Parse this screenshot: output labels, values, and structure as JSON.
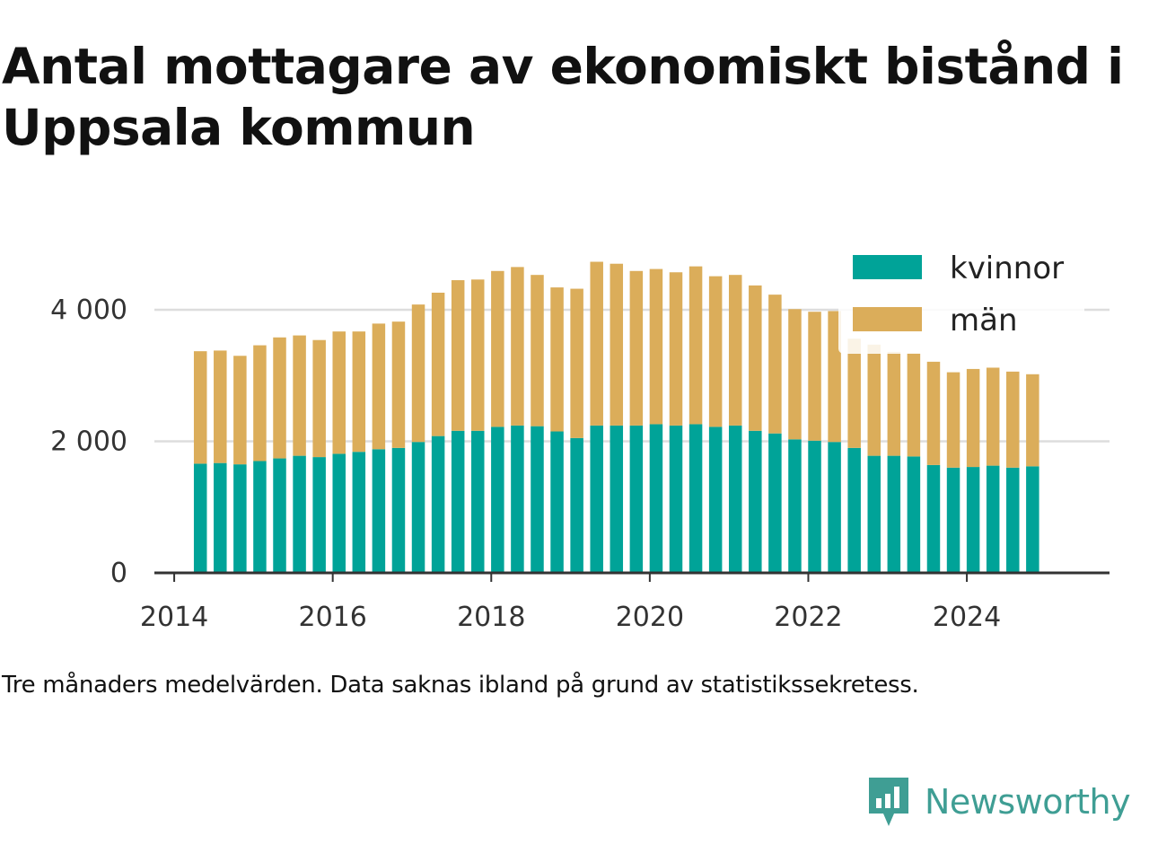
{
  "title": "Antal mottagare av ekonomiskt bistånd i Uppsala kommun",
  "caption": "Tre månaders medelvärden. Data saknas ibland på grund av statistikssekretess.",
  "brand": {
    "name": "Newsworthy",
    "icon": "newsworthy-logo-icon",
    "color": "#3f9e94"
  },
  "colors": {
    "kvinnor": "#00a398",
    "man": "#dbad5a",
    "grid": "#dddddd",
    "axis": "#333333"
  },
  "chart_data": {
    "type": "bar",
    "stacked": true,
    "title": "Antal mottagare av ekonomiskt bistånd i Uppsala kommun",
    "xlabel": "",
    "ylabel": "",
    "ylim": [
      0,
      4800
    ],
    "yticks": [
      0,
      2000,
      4000
    ],
    "ytick_labels": [
      "0",
      "2 000",
      "4 000"
    ],
    "xlim": [
      2013.75,
      2025.8
    ],
    "xticks": [
      2014,
      2016,
      2018,
      2020,
      2022,
      2024
    ],
    "xtick_labels": [
      "2014",
      "2016",
      "2018",
      "2020",
      "2022",
      "2024"
    ],
    "grid": "horizontal",
    "legend_position": "top-right",
    "x": [
      2014.33,
      2014.58,
      2014.83,
      2015.08,
      2015.33,
      2015.58,
      2015.83,
      2016.08,
      2016.33,
      2016.58,
      2016.83,
      2017.08,
      2017.33,
      2017.58,
      2017.83,
      2018.08,
      2018.33,
      2018.58,
      2018.83,
      2019.08,
      2019.33,
      2019.58,
      2019.83,
      2020.08,
      2020.33,
      2020.58,
      2020.83,
      2021.08,
      2021.33,
      2021.58,
      2021.83,
      2022.08,
      2022.33,
      2022.58,
      2022.83,
      2023.08,
      2023.33,
      2023.58,
      2023.83,
      2024.08,
      2024.33,
      2024.58,
      2024.83
    ],
    "series": [
      {
        "name": "kvinnor",
        "color": "#00a398",
        "values": [
          1660,
          1670,
          1650,
          1700,
          1740,
          1780,
          1760,
          1810,
          1840,
          1880,
          1900,
          1990,
          2080,
          2160,
          2160,
          2220,
          2240,
          2230,
          2150,
          2050,
          2240,
          2240,
          2240,
          2260,
          2240,
          2260,
          2220,
          2240,
          2160,
          2120,
          2030,
          2010,
          1990,
          1900,
          1780,
          1780,
          1770,
          1640,
          1600,
          1610,
          1630,
          1600,
          1620
        ]
      },
      {
        "name": "män",
        "color": "#dbad5a",
        "values": [
          1710,
          1710,
          1650,
          1760,
          1840,
          1830,
          1780,
          1860,
          1830,
          1910,
          1920,
          2090,
          2180,
          2290,
          2300,
          2370,
          2410,
          2300,
          2190,
          2270,
          2490,
          2460,
          2350,
          2360,
          2330,
          2400,
          2290,
          2290,
          2210,
          2110,
          1980,
          1960,
          1990,
          1660,
          1690,
          1580,
          1570,
          1570,
          1450,
          1490,
          1490,
          1460,
          1400
        ]
      }
    ]
  },
  "legend": [
    {
      "name": "kvinnor",
      "color": "#00a398"
    },
    {
      "name": "män",
      "color": "#dbad5a"
    }
  ]
}
